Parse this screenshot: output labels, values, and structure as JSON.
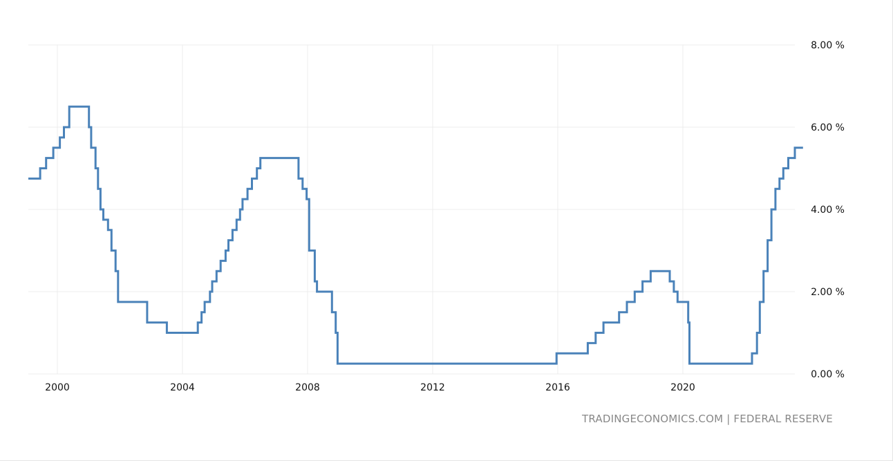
{
  "source_label": "TRADINGECONOMICS.COM | FEDERAL RESERVE",
  "colors": {
    "line": "#4a82b9",
    "grid": "#ececec",
    "text": "#111111",
    "source": "#888888"
  },
  "chart_data": {
    "type": "line",
    "title": "",
    "xlabel": "",
    "ylabel": "",
    "xlim": [
      1999.0,
      2024.0
    ],
    "ylim": [
      0,
      8
    ],
    "x_ticks": [
      2000,
      2004,
      2008,
      2012,
      2016,
      2020
    ],
    "x_tick_labels": [
      "2000",
      "2004",
      "2008",
      "2012",
      "2016",
      "2020"
    ],
    "y_ticks": [
      0,
      2,
      4,
      6,
      8
    ],
    "y_tick_labels": [
      "0.00 %",
      "2.00 %",
      "4.00 %",
      "6.00 %",
      "8.00 %"
    ],
    "grid": true,
    "step": true,
    "series": [
      {
        "x": [
          1999.0,
          1999.45,
          1999.64,
          1999.87,
          2000.08,
          2000.21,
          2000.38,
          2001.01,
          2001.08,
          2001.22,
          2001.3,
          2001.38,
          2001.47,
          2001.62,
          2001.73,
          2001.86,
          2001.94,
          2002.87,
          2003.5,
          2004.49,
          2004.61,
          2004.71,
          2004.88,
          2004.95,
          2005.09,
          2005.22,
          2005.38,
          2005.47,
          2005.6,
          2005.73,
          2005.84,
          2005.92,
          2006.08,
          2006.22,
          2006.38,
          2006.49,
          2007.71,
          2007.84,
          2007.97,
          2008.05,
          2008.23,
          2008.3,
          2008.78,
          2008.9,
          2008.96,
          2015.96,
          2016.96,
          2017.21,
          2017.46,
          2017.96,
          2018.21,
          2018.46,
          2018.71,
          2018.97,
          2019.58,
          2019.71,
          2019.83,
          2020.17,
          2020.21,
          2022.21,
          2022.37,
          2022.46,
          2022.58,
          2022.71,
          2022.83,
          2022.96,
          2023.09,
          2023.21,
          2023.37,
          2023.58,
          2023.84
        ],
        "y": [
          4.75,
          5.0,
          5.25,
          5.5,
          5.75,
          6.0,
          6.5,
          6.0,
          5.5,
          5.0,
          4.5,
          4.0,
          3.75,
          3.5,
          3.0,
          2.5,
          1.75,
          1.25,
          1.0,
          1.25,
          1.5,
          1.75,
          2.0,
          2.25,
          2.5,
          2.75,
          3.0,
          3.25,
          3.5,
          3.75,
          4.0,
          4.25,
          4.5,
          4.75,
          5.0,
          5.25,
          4.75,
          4.5,
          4.25,
          3.0,
          2.25,
          2.0,
          1.5,
          1.0,
          0.25,
          0.5,
          0.75,
          1.0,
          1.25,
          1.5,
          1.75,
          2.0,
          2.25,
          2.5,
          2.25,
          2.0,
          1.75,
          1.25,
          0.25,
          0.5,
          1.0,
          1.75,
          2.5,
          3.25,
          4.0,
          4.5,
          4.75,
          5.0,
          5.25,
          5.5,
          5.5
        ]
      }
    ]
  }
}
